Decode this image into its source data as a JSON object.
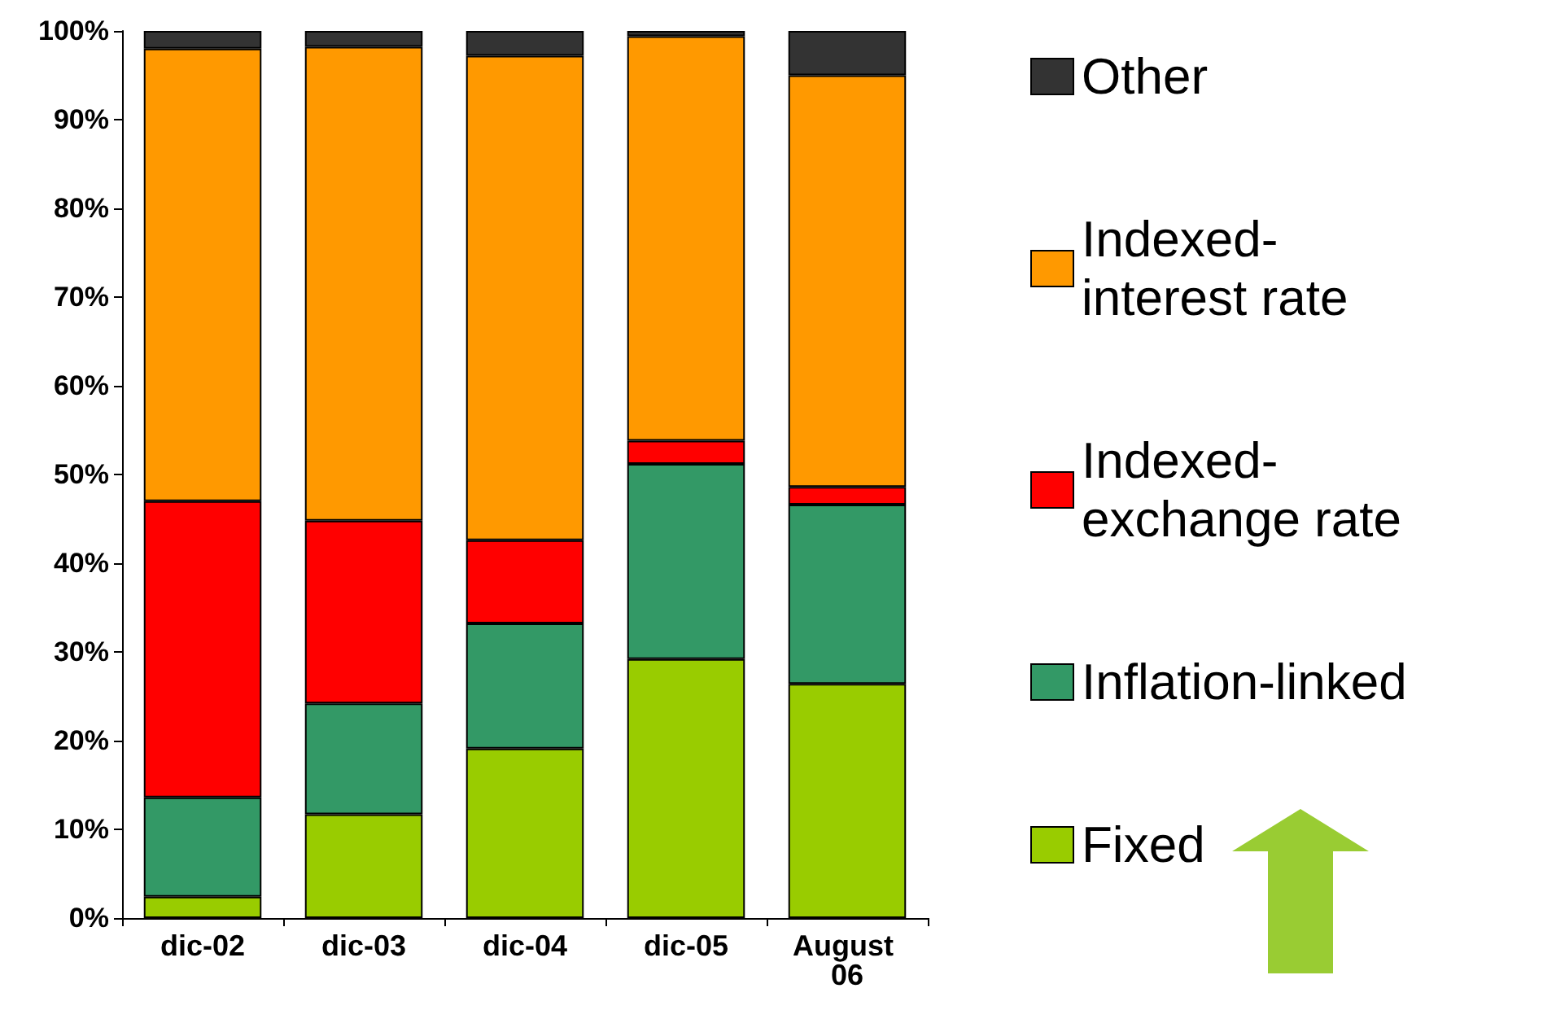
{
  "chart_data": {
    "type": "bar",
    "stacked": true,
    "categories": [
      "dic-02",
      "dic-03",
      "dic-04",
      "dic-05",
      "August 06"
    ],
    "series": [
      {
        "name": "Fixed",
        "color": "#99cc00",
        "values": [
          2.4,
          11.7,
          19.1,
          29.2,
          26.4
        ]
      },
      {
        "name": "Inflation-linked",
        "color": "#339966",
        "values": [
          11.2,
          12.5,
          14.1,
          22,
          20.2
        ]
      },
      {
        "name": "Indexed-exchange rate",
        "color": "#ff0000",
        "values": [
          33.4,
          20.6,
          9.4,
          2.6,
          2
        ]
      },
      {
        "name": "Indexed-interest rate",
        "color": "#ff9900",
        "values": [
          51,
          53.4,
          54.6,
          45.6,
          46.4
        ]
      },
      {
        "name": "Other",
        "color": "#333333",
        "values": [
          2,
          1.8,
          2.8,
          0.6,
          5
        ]
      }
    ],
    "ylim": [
      0,
      100
    ],
    "yticks": [
      {
        "value": 0,
        "label": "0%"
      },
      {
        "value": 10,
        "label": "10%"
      },
      {
        "value": 20,
        "label": "20%"
      },
      {
        "value": 30,
        "label": "30%"
      },
      {
        "value": 40,
        "label": "40%"
      },
      {
        "value": 50,
        "label": "50%"
      },
      {
        "value": 60,
        "label": "60%"
      },
      {
        "value": 70,
        "label": "70%"
      },
      {
        "value": 80,
        "label": "80%"
      },
      {
        "value": 90,
        "label": "90%"
      },
      {
        "value": 100,
        "label": "100%"
      }
    ],
    "grid": false,
    "legend": "right"
  }
}
